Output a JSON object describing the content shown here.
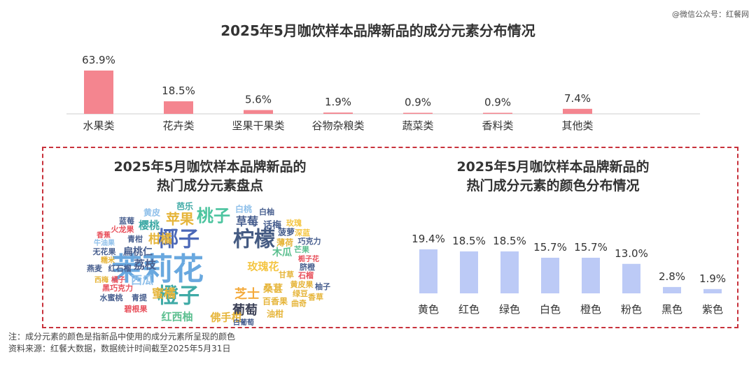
{
  "watermark": "@微信公众号：红餐网",
  "top_title": "2025年5月咖饮样本品牌新品的成分元素分布情况",
  "wc_title_1": "2025年5月咖饮样本品牌新品的",
  "wc_title_2": "热门成分元素盘点",
  "color_title_1": "2025年5月咖饮样本品牌新品的",
  "color_title_2": "热门成分元素的颜色分布情况",
  "note_1": "注：成分元素的颜色是指新品中使用的成分元素所呈现的颜色",
  "note_2": "资料来源：红餐大数据，数据统计时间截至2025年5月31日",
  "colors": {
    "top_bar": "#f4858f",
    "color_bar": "#bccaf6"
  },
  "word_cloud": [
    {
      "t": "茉莉花",
      "c": "#69a8df"
    },
    {
      "t": "椰子",
      "c": "#4b68b8"
    },
    {
      "t": "柠檬",
      "c": "#445a82"
    },
    {
      "t": "橙子",
      "c": "#3faaa6"
    },
    {
      "t": "桃子",
      "c": "#4cc49f"
    },
    {
      "t": "苹果",
      "c": "#e6b53a"
    },
    {
      "t": "草莓",
      "c": "#475e8e"
    },
    {
      "t": "柑橘",
      "c": "#e6b53a"
    },
    {
      "t": "蜜橘",
      "c": "#e6b53a"
    },
    {
      "t": "葡萄",
      "c": "#3a3f55"
    },
    {
      "t": "芝士",
      "c": "#f4aa3c"
    },
    {
      "t": "西瓜",
      "c": "#8fc0ea"
    },
    {
      "t": "荔枝",
      "c": "#475e8e"
    },
    {
      "t": "樱桃",
      "c": "#3faaa6"
    },
    {
      "t": "扁桃仁",
      "c": "#475e8e"
    },
    {
      "t": "玫瑰花",
      "c": "#f4c542"
    },
    {
      "t": "桑葚",
      "c": "#e6b53a"
    },
    {
      "t": "红西柚",
      "c": "#5bbf8f"
    },
    {
      "t": "佛手柑",
      "c": "#e6b53a"
    },
    {
      "t": "木瓜",
      "c": "#5bbf8f"
    },
    {
      "t": "话梅",
      "c": "#475e8e"
    },
    {
      "t": "芭乐",
      "c": "#3faaa6"
    },
    {
      "t": "黄皮",
      "c": "#8fc0ea"
    },
    {
      "t": "白桃",
      "c": "#8fc0ea"
    },
    {
      "t": "白柚",
      "c": "#475e8e"
    },
    {
      "t": "玫瑰",
      "c": "#f4c542"
    },
    {
      "t": "菠萝",
      "c": "#475e8e"
    },
    {
      "t": "深蓝",
      "c": "#f4c542"
    },
    {
      "t": "薄荷",
      "c": "#e6b53a"
    },
    {
      "t": "巧克力",
      "c": "#475e8e"
    },
    {
      "t": "芒果",
      "c": "#5bbf8f"
    },
    {
      "t": "栀子花",
      "c": "#e8505b"
    },
    {
      "t": "脐橙",
      "c": "#475e8e"
    },
    {
      "t": "石榴",
      "c": "#e8505b"
    },
    {
      "t": "柚子",
      "c": "#475e8e"
    },
    {
      "t": "香草",
      "c": "#e6b53a"
    },
    {
      "t": "黄皮果",
      "c": "#e6b53a"
    },
    {
      "t": "绿豆",
      "c": "#e6b53a"
    },
    {
      "t": "曲奇",
      "c": "#e6b53a"
    },
    {
      "t": "百香果",
      "c": "#e6b53a"
    },
    {
      "t": "油柑",
      "c": "#e6b53a"
    },
    {
      "t": "白葡萄",
      "c": "#475e8e"
    },
    {
      "t": "甘草",
      "c": "#e6b53a"
    },
    {
      "t": "蓝莓",
      "c": "#475e8e"
    },
    {
      "t": "火龙果",
      "c": "#e8505b"
    },
    {
      "t": "香蕉",
      "c": "#e8505b"
    },
    {
      "t": "青柑",
      "c": "#475e8e"
    },
    {
      "t": "牛油果",
      "c": "#8fc0ea"
    },
    {
      "t": "无花果",
      "c": "#475e8e"
    },
    {
      "t": "糯米",
      "c": "#e6b53a"
    },
    {
      "t": "燕麦",
      "c": "#475e8e"
    },
    {
      "t": "红石榴",
      "c": "#475e8e"
    },
    {
      "t": "西梅",
      "c": "#e6b53a"
    },
    {
      "t": "橘子",
      "c": "#e8505b"
    },
    {
      "t": "黑巧克力",
      "c": "#e8505b"
    },
    {
      "t": "水蜜桃",
      "c": "#475e8e"
    },
    {
      "t": "青提",
      "c": "#475e8e"
    },
    {
      "t": "碧根果",
      "c": "#e8505b"
    }
  ],
  "chart_data": [
    {
      "type": "bar",
      "title": "2025年5月咖饮样本品牌新品的成分元素分布情况",
      "categories": [
        "水果类",
        "花卉类",
        "坚果干果类",
        "谷物杂粮类",
        "蔬菜类",
        "香料类",
        "其他类"
      ],
      "values": [
        63.9,
        18.5,
        5.6,
        1.9,
        0.9,
        0.9,
        7.4
      ],
      "value_labels": [
        "63.9%",
        "18.5%",
        "5.6%",
        "1.9%",
        "0.9%",
        "0.9%",
        "7.4%"
      ],
      "unit": "%",
      "ylim": [
        0,
        63.9
      ],
      "grid": false,
      "legend": "none"
    },
    {
      "type": "bar",
      "title": "2025年5月咖饮样本品牌新品的热门成分元素的颜色分布情况",
      "categories": [
        "黄色",
        "红色",
        "绿色",
        "白色",
        "橙色",
        "粉色",
        "黑色",
        "紫色"
      ],
      "values": [
        19.4,
        18.5,
        18.5,
        15.7,
        15.7,
        13.0,
        2.8,
        1.9
      ],
      "value_labels": [
        "19.4%",
        "18.5%",
        "18.5%",
        "15.7%",
        "15.7%",
        "13.0%",
        "2.8%",
        "1.9%"
      ],
      "unit": "%",
      "ylim": [
        0,
        19.4
      ],
      "grid": false,
      "legend": "none"
    }
  ]
}
